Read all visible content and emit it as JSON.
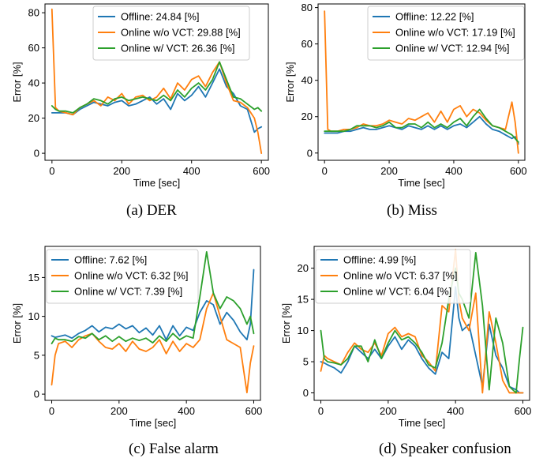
{
  "colors": {
    "offline": "#1f77b4",
    "online_wo_vct": "#ff7f0e",
    "online_w_vct": "#2ca02c"
  },
  "chart_data": [
    {
      "type": "line",
      "caption": "(a) DER",
      "xlabel": "Time [sec]",
      "ylabel": "Error [%]",
      "xlim": [
        -20,
        620
      ],
      "ylim": [
        -4,
        85
      ],
      "xticks": [
        0,
        200,
        400,
        600
      ],
      "yticks": [
        0,
        20,
        40,
        60,
        80
      ],
      "grid": false,
      "legend_position": "top-right",
      "x": [
        0,
        10,
        20,
        40,
        60,
        80,
        100,
        120,
        140,
        160,
        180,
        200,
        220,
        240,
        260,
        280,
        300,
        320,
        340,
        360,
        380,
        400,
        420,
        440,
        460,
        480,
        500,
        520,
        540,
        560,
        580,
        590,
        600
      ],
      "series": [
        {
          "name": "Offline: 24.84 [%]",
          "color": "#1f77b4",
          "values": [
            23,
            23,
            23,
            23,
            22,
            25,
            27,
            29,
            28,
            27,
            29,
            30,
            27,
            28,
            30,
            32,
            28,
            31,
            25,
            34,
            30,
            33,
            38,
            32,
            40,
            48,
            38,
            34,
            27,
            25,
            12,
            14,
            15
          ]
        },
        {
          "name": "Online w/o VCT: 29.88 [%]",
          "color": "#ff7f0e",
          "values": [
            82,
            26,
            24,
            23,
            22,
            26,
            28,
            30,
            27,
            32,
            30,
            34,
            28,
            32,
            33,
            30,
            32,
            37,
            31,
            40,
            36,
            42,
            44,
            38,
            46,
            52,
            40,
            30,
            29,
            26,
            20,
            12,
            0
          ]
        },
        {
          "name": "Online w/ VCT: 26.36 [%]",
          "color": "#2ca02c",
          "values": [
            27,
            25,
            24,
            24,
            23,
            26,
            28,
            31,
            30,
            28,
            31,
            32,
            30,
            31,
            32,
            31,
            30,
            33,
            30,
            36,
            32,
            37,
            40,
            36,
            42,
            52,
            42,
            32,
            31,
            28,
            25,
            26,
            24
          ]
        }
      ]
    },
    {
      "type": "line",
      "caption": "(b) Miss",
      "xlabel": "Time [sec]",
      "ylabel": "Error [%]",
      "xlim": [
        -20,
        620
      ],
      "ylim": [
        -4,
        82
      ],
      "xticks": [
        0,
        200,
        400,
        600
      ],
      "yticks": [
        0,
        20,
        40,
        60,
        80
      ],
      "grid": false,
      "legend_position": "top-right",
      "x": [
        0,
        10,
        20,
        40,
        60,
        80,
        100,
        120,
        140,
        160,
        180,
        200,
        220,
        240,
        260,
        280,
        300,
        320,
        340,
        360,
        380,
        400,
        420,
        440,
        460,
        480,
        500,
        520,
        540,
        560,
        580,
        590,
        600
      ],
      "series": [
        {
          "name": "Offline: 12.22 [%]",
          "color": "#1f77b4",
          "values": [
            11,
            11,
            11,
            11,
            12,
            12,
            13,
            14,
            13,
            13,
            14,
            15,
            14,
            13,
            15,
            14,
            13,
            15,
            13,
            15,
            13,
            15,
            16,
            14,
            17,
            20,
            16,
            13,
            12,
            10,
            8,
            9,
            5
          ]
        },
        {
          "name": "Online w/o VCT: 17.19 [%]",
          "color": "#ff7f0e",
          "values": [
            78,
            13,
            12,
            12,
            13,
            13,
            14,
            16,
            15,
            15,
            16,
            18,
            17,
            16,
            19,
            18,
            20,
            22,
            17,
            23,
            17,
            24,
            26,
            20,
            24,
            22,
            18,
            15,
            14,
            13,
            28,
            17,
            0
          ]
        },
        {
          "name": "Online w/ VCT: 12.94 [%]",
          "color": "#2ca02c",
          "values": [
            12,
            12,
            12,
            12,
            12,
            13,
            15,
            15,
            15,
            14,
            15,
            17,
            14,
            14,
            16,
            16,
            14,
            17,
            14,
            16,
            14,
            17,
            19,
            15,
            20,
            24,
            19,
            15,
            14,
            12,
            10,
            8,
            6
          ]
        }
      ]
    },
    {
      "type": "line",
      "caption": "(c) False alarm",
      "xlabel": "Time [sec]",
      "ylabel": "Error [%]",
      "xlim": [
        -20,
        620
      ],
      "ylim": [
        -0.8,
        19
      ],
      "xticks": [
        0,
        200,
        400,
        600
      ],
      "yticks": [
        0,
        5,
        10,
        15
      ],
      "grid": false,
      "legend_position": "top-left",
      "x": [
        0,
        10,
        20,
        40,
        60,
        80,
        100,
        120,
        140,
        160,
        180,
        200,
        220,
        240,
        260,
        280,
        300,
        320,
        340,
        360,
        380,
        400,
        420,
        440,
        460,
        480,
        500,
        520,
        540,
        560,
        580,
        590,
        600
      ],
      "series": [
        {
          "name": "Offline: 7.62 [%]",
          "color": "#1f77b4",
          "values": [
            7.5,
            7.3,
            7.4,
            7.6,
            7.2,
            7.8,
            8.2,
            8.8,
            8.0,
            8.6,
            8.4,
            9.0,
            8.4,
            8.8,
            7.9,
            8.5,
            7.6,
            8.8,
            7.0,
            8.8,
            7.5,
            8.6,
            8.2,
            10.5,
            12.0,
            11.5,
            9.0,
            10.5,
            9.5,
            8.0,
            7.0,
            9.0,
            16.0
          ]
        },
        {
          "name": "Online w/o VCT: 6.32 [%]",
          "color": "#ff7f0e",
          "values": [
            1.2,
            5.0,
            6.5,
            6.8,
            6.0,
            7.0,
            7.5,
            7.8,
            6.8,
            6.0,
            5.8,
            6.5,
            5.5,
            6.8,
            5.8,
            5.5,
            6.0,
            7.0,
            5.2,
            6.8,
            5.5,
            6.5,
            6.0,
            7.0,
            11.0,
            13.0,
            10.0,
            7.0,
            6.5,
            6.0,
            0.2,
            4.0,
            6.2
          ]
        },
        {
          "name": "Online w/ VCT: 7.39 [%]",
          "color": "#2ca02c",
          "values": [
            6.5,
            7.2,
            7.0,
            7.0,
            6.8,
            7.4,
            7.2,
            7.8,
            7.0,
            7.5,
            6.8,
            7.4,
            6.8,
            7.2,
            6.9,
            7.2,
            6.6,
            7.5,
            6.8,
            7.8,
            7.0,
            7.5,
            7.2,
            12.5,
            18.3,
            13.0,
            11.0,
            12.5,
            12.0,
            11.0,
            9.0,
            10.0,
            7.8
          ]
        }
      ]
    },
    {
      "type": "line",
      "caption": "(d) Speaker confusion",
      "xlabel": "Time [sec]",
      "ylabel": "Error [%]",
      "xlim": [
        -20,
        620
      ],
      "ylim": [
        -1.2,
        23.5
      ],
      "xticks": [
        0,
        200,
        400,
        600
      ],
      "yticks": [
        0,
        5,
        10,
        15,
        20
      ],
      "grid": false,
      "legend_position": "top-left",
      "x": [
        0,
        10,
        20,
        40,
        60,
        80,
        100,
        120,
        140,
        160,
        180,
        200,
        220,
        240,
        260,
        280,
        300,
        320,
        340,
        360,
        380,
        400,
        410,
        420,
        440,
        460,
        480,
        500,
        520,
        540,
        560,
        580,
        590,
        600
      ],
      "series": [
        {
          "name": "Offline: 4.99 [%]",
          "color": "#1f77b4",
          "values": [
            5.0,
            4.8,
            4.5,
            4.0,
            3.2,
            5.0,
            7.5,
            6.5,
            5.5,
            7.0,
            5.5,
            7.5,
            9.0,
            7.0,
            8.5,
            7.5,
            5.5,
            4.0,
            3.0,
            6.5,
            5.5,
            17.0,
            12.0,
            10.0,
            11.0,
            6.0,
            1.0,
            11.0,
            6.0,
            4.0,
            1.0,
            0.5,
            0.0,
            0.0
          ]
        },
        {
          "name": "Online w/o VCT: 6.37 [%]",
          "color": "#ff7f0e",
          "values": [
            3.5,
            6.0,
            5.5,
            5.0,
            4.5,
            6.5,
            8.0,
            7.0,
            6.5,
            8.0,
            6.0,
            9.5,
            10.5,
            9.0,
            9.5,
            9.0,
            6.0,
            5.0,
            3.5,
            14.0,
            13.0,
            23.0,
            15.0,
            12.0,
            10.0,
            16.0,
            0.0,
            13.0,
            8.0,
            2.0,
            0.0,
            0.0,
            0.0,
            0.0
          ]
        },
        {
          "name": "Online w/ VCT: 6.04 [%]",
          "color": "#2ca02c",
          "values": [
            10.0,
            5.5,
            5.0,
            4.8,
            4.5,
            5.5,
            7.5,
            7.5,
            5.0,
            8.5,
            5.5,
            8.0,
            10.0,
            8.5,
            9.0,
            8.0,
            6.5,
            4.5,
            4.0,
            8.0,
            15.0,
            20.0,
            16.0,
            15.0,
            12.0,
            22.5,
            14.0,
            0.5,
            12.0,
            8.0,
            1.0,
            0.0,
            5.5,
            10.5
          ]
        }
      ]
    }
  ]
}
